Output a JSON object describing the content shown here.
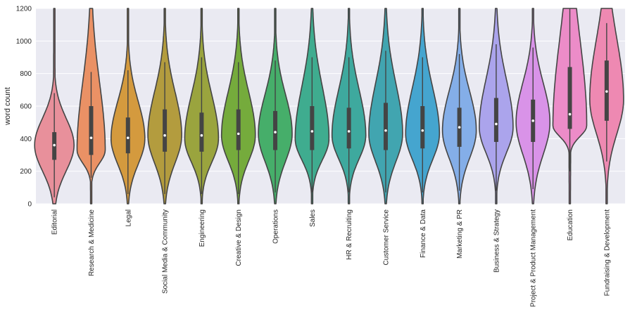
{
  "chart_data": {
    "type": "violin",
    "ylabel": "word count",
    "xlabel": "",
    "ylim": [
      0,
      1200
    ],
    "yticks": [
      0,
      200,
      400,
      600,
      800,
      1000,
      1200
    ],
    "grid": true,
    "categories": [
      {
        "name": "Editorial",
        "color": "#e8909b",
        "median": 360,
        "q1": 270,
        "q3": 440,
        "wlo": 40,
        "whi": 680,
        "tail_lo": 0,
        "tail_hi": 1200,
        "mode": 360,
        "max_width": 28
      },
      {
        "name": "Research & Medicine",
        "color": "#ea9165",
        "median": 405,
        "q1": 300,
        "q3": 600,
        "wlo": 160,
        "whi": 810,
        "tail_lo": 0,
        "tail_hi": 1200,
        "mode": 330,
        "max_width": 20
      },
      {
        "name": "Legal",
        "color": "#d49a3e",
        "median": 405,
        "q1": 310,
        "q3": 530,
        "wlo": 60,
        "whi": 820,
        "tail_lo": 0,
        "tail_hi": 1200,
        "mode": 400,
        "max_width": 24
      },
      {
        "name": "Social Media & Community",
        "color": "#b39c3e",
        "median": 420,
        "q1": 320,
        "q3": 580,
        "wlo": 60,
        "whi": 870,
        "tail_lo": 0,
        "tail_hi": 1200,
        "mode": 420,
        "max_width": 24
      },
      {
        "name": "Engineering",
        "color": "#9aa43e",
        "median": 420,
        "q1": 320,
        "q3": 560,
        "wlo": 60,
        "whi": 900,
        "tail_lo": 0,
        "tail_hi": 1200,
        "mode": 400,
        "max_width": 24
      },
      {
        "name": "Creative & Design",
        "color": "#75ab3c",
        "median": 430,
        "q1": 330,
        "q3": 580,
        "wlo": 60,
        "whi": 870,
        "tail_lo": 0,
        "tail_hi": 1200,
        "mode": 420,
        "max_width": 24
      },
      {
        "name": "Operations",
        "color": "#46ae6a",
        "median": 440,
        "q1": 330,
        "q3": 570,
        "wlo": 70,
        "whi": 880,
        "tail_lo": 0,
        "tail_hi": 1200,
        "mode": 430,
        "max_width": 24
      },
      {
        "name": "Sales",
        "color": "#3fac8f",
        "median": 445,
        "q1": 330,
        "q3": 600,
        "wlo": 70,
        "whi": 900,
        "tail_lo": 0,
        "tail_hi": 1200,
        "mode": 400,
        "max_width": 24
      },
      {
        "name": "HR & Recruiting",
        "color": "#3ea99e",
        "median": 445,
        "q1": 340,
        "q3": 590,
        "wlo": 70,
        "whi": 900,
        "tail_lo": 0,
        "tail_hi": 1200,
        "mode": 420,
        "max_width": 24
      },
      {
        "name": "Customer Service",
        "color": "#41a5b0",
        "median": 450,
        "q1": 330,
        "q3": 620,
        "wlo": 70,
        "whi": 940,
        "tail_lo": 0,
        "tail_hi": 1200,
        "mode": 430,
        "max_width": 24
      },
      {
        "name": "Finance & Data",
        "color": "#45a5cf",
        "median": 450,
        "q1": 340,
        "q3": 600,
        "wlo": 70,
        "whi": 900,
        "tail_lo": 0,
        "tail_hi": 1200,
        "mode": 430,
        "max_width": 24
      },
      {
        "name": "Marketing & PR",
        "color": "#84aee8",
        "median": 470,
        "q1": 350,
        "q3": 590,
        "wlo": 80,
        "whi": 920,
        "tail_lo": 0,
        "tail_hi": 1200,
        "mode": 450,
        "max_width": 24
      },
      {
        "name": "Business & Strategy",
        "color": "#aba4ec",
        "median": 490,
        "q1": 380,
        "q3": 650,
        "wlo": 80,
        "whi": 980,
        "tail_lo": 0,
        "tail_hi": 1200,
        "mode": 470,
        "max_width": 24
      },
      {
        "name": "Project & Product Management",
        "color": "#d993e8",
        "median": 510,
        "q1": 380,
        "q3": 640,
        "wlo": 90,
        "whi": 960,
        "tail_lo": 0,
        "tail_hi": 1200,
        "mode": 500,
        "max_width": 24
      },
      {
        "name": "Education",
        "color": "#ec8cc8",
        "median": 550,
        "q1": 460,
        "q3": 840,
        "wlo": 200,
        "whi": 1200,
        "tail_lo": 0,
        "tail_hi": 1200,
        "mode": 480,
        "max_width": 24
      },
      {
        "name": "Fundraising & Development",
        "color": "#ee89b2",
        "median": 690,
        "q1": 510,
        "q3": 880,
        "wlo": 260,
        "whi": 1110,
        "tail_lo": 0,
        "tail_hi": 1200,
        "mode": 640,
        "max_width": 24
      }
    ]
  }
}
